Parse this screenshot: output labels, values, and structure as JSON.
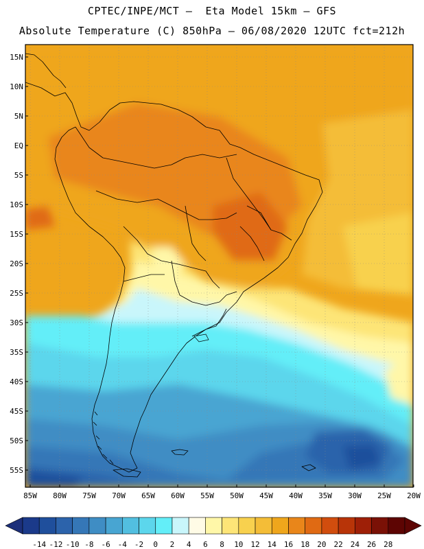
{
  "header": {
    "line1": "CPTEC/INPE/MCT –  Eta Model 15km – GFS",
    "line2": "Absolute Temperature (C) 850hPa – 06/08/2020 12UTC fct=212h"
  },
  "map": {
    "lat_labels": [
      "15N",
      "10N",
      "5N",
      "EQ",
      "5S",
      "10S",
      "15S",
      "20S",
      "25S",
      "30S",
      "35S",
      "40S",
      "45S",
      "50S",
      "55S"
    ],
    "lon_labels": [
      "85W",
      "80W",
      "75W",
      "70W",
      "65W",
      "60W",
      "55W",
      "50W",
      "45W",
      "40W",
      "35W",
      "30W",
      "25W",
      "20W"
    ]
  },
  "legend": {
    "ticks": [
      "-14",
      "-12",
      "-10",
      "-8",
      "-6",
      "-4",
      "-2",
      "0",
      "2",
      "4",
      "6",
      "8",
      "10",
      "12",
      "14",
      "16",
      "18",
      "20",
      "22",
      "24",
      "26",
      "28"
    ],
    "colors": [
      "#1b3a8a",
      "#1f4f9c",
      "#2c63ab",
      "#3577b7",
      "#3f8dc4",
      "#48a5d2",
      "#52bfe0",
      "#5cd6ec",
      "#63eef8",
      "#c9f6fb",
      "#fffbe6",
      "#fff7a8",
      "#fde577",
      "#f8d14e",
      "#f4bd37",
      "#efa61c",
      "#e9861a",
      "#e06a13",
      "#d14d0e",
      "#b83408",
      "#9e1f07",
      "#7a1106",
      "#5d0503"
    ],
    "under_color": "#1c2f7a",
    "over_color": "#5d0503"
  }
}
